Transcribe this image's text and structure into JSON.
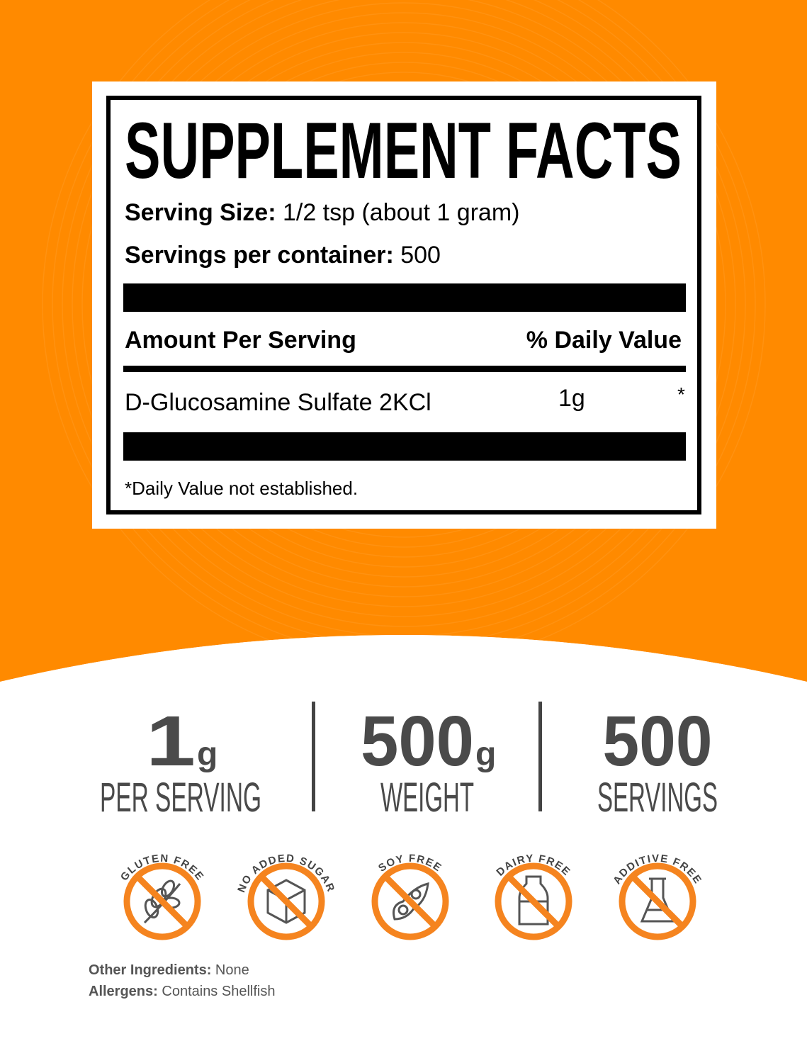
{
  "colors": {
    "accent": "#FF8A00",
    "icon_orange": "#F5841F",
    "stat_gray": "#4a4a4a"
  },
  "facts": {
    "title": "SUPPLEMENT FACTS",
    "serving_size_label": "Serving Size:",
    "serving_size_value": "1/2 tsp (about 1 gram)",
    "servings_label": "Servings per container:",
    "servings_value": "500",
    "amount_header": "Amount Per Serving",
    "dv_header": "% Daily Value",
    "ingredient": {
      "name": "D-Glucosamine Sulfate 2KCl",
      "amount": "1g",
      "dv": "*"
    },
    "footnote": "*Daily Value not established."
  },
  "stats": [
    {
      "value": "1",
      "unit": "g",
      "label": "PER SERVING"
    },
    {
      "value": "500",
      "unit": "g",
      "label": "WEIGHT"
    },
    {
      "value": "500",
      "unit": "",
      "label": "SERVINGS"
    }
  ],
  "badges": [
    {
      "label": "GLUTEN FREE",
      "icon": "wheat-icon"
    },
    {
      "label": "NO ADDED SUGAR",
      "icon": "sugar-cube-icon"
    },
    {
      "label": "SOY FREE",
      "icon": "soybean-icon"
    },
    {
      "label": "DAIRY FREE",
      "icon": "milk-bottle-icon"
    },
    {
      "label": "ADDITIVE FREE",
      "icon": "flask-icon"
    }
  ],
  "footer": {
    "other_label": "Other Ingredients:",
    "other_value": "None",
    "allergens_label": "Allergens:",
    "allergens_value": "Contains Shellfish"
  }
}
